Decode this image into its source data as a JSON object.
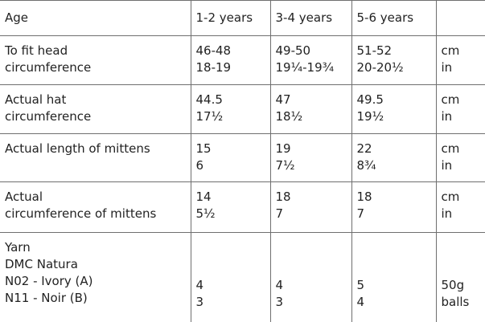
{
  "table": {
    "header": [
      "Age",
      "1-2 years",
      "3-4 years",
      "5-6 years"
    ],
    "rows": [
      [
        [
          "To fit head",
          "circumference"
        ],
        [
          "46-48",
          "18-19"
        ],
        [
          "49-50",
          "19¼-19¾"
        ],
        [
          "51-52",
          "20-20½"
        ],
        [
          "cm",
          "in"
        ]
      ],
      [
        [
          "Actual hat",
          "circumference"
        ],
        [
          "44.5",
          "17½"
        ],
        [
          "47",
          "18½"
        ],
        [
          "49.5",
          "19½"
        ],
        [
          "cm",
          "in"
        ]
      ],
      [
        [
          "Actual length of mittens"
        ],
        [
          "15",
          "6"
        ],
        [
          "19",
          "7½"
        ],
        [
          "22",
          "8¾"
        ],
        [
          "cm",
          "in"
        ]
      ],
      [
        [
          "Actual",
          "circumference of mittens"
        ],
        [
          "14",
          "5½"
        ],
        [
          "18",
          "7"
        ],
        [
          "18",
          "7"
        ],
        [
          "cm",
          "in"
        ]
      ],
      [
        [
          "Yarn",
          "DMC Natura",
          "N02 - Ivory (A)",
          "N11 - Noir (B)"
        ],
        [
          "4",
          "3"
        ],
        [
          "4",
          "3"
        ],
        [
          "5",
          "4"
        ],
        [
          "50g",
          "balls"
        ]
      ]
    ]
  }
}
